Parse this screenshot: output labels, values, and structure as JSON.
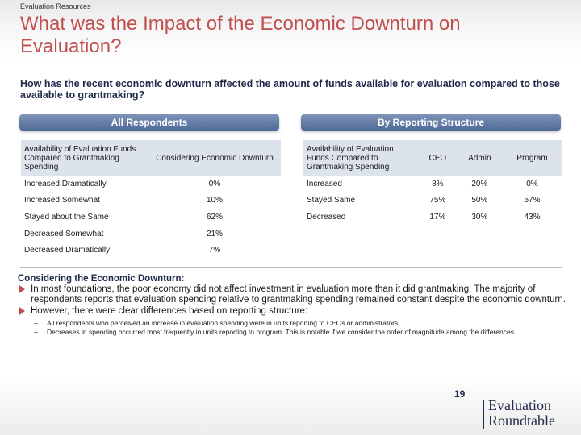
{
  "section_label": "Evaluation Resources",
  "title": "What was the Impact of the Economic Downturn on Evaluation?",
  "question": "How has the recent economic downturn affected the amount of funds available for evaluation compared to those available to grantmaking?",
  "all_respondents": {
    "label": "All Respondents",
    "columns": [
      "Availability of Evaluation Funds Compared to Grantmaking Spending",
      "Considering Economic Downturn"
    ],
    "rows": [
      [
        "Increased Dramatically",
        "0%"
      ],
      [
        "Increased Somewhat",
        "10%"
      ],
      [
        "Stayed about the Same",
        "62%"
      ],
      [
        "Decreased Somewhat",
        "21%"
      ],
      [
        "Decreased Dramatically",
        "7%"
      ]
    ]
  },
  "by_structure": {
    "label": "By Reporting Structure",
    "columns": [
      "Availability of Evaluation Funds Compared to Grantmaking Spending",
      "CEO",
      "Admin",
      "Program"
    ],
    "rows": [
      [
        "Increased",
        "8%",
        "20%",
        "0%"
      ],
      [
        "Stayed Same",
        "75%",
        "50%",
        "57%"
      ],
      [
        "Decreased",
        "17%",
        "30%",
        "43%"
      ]
    ]
  },
  "body": {
    "heading": "Considering the Economic Downturn:",
    "bullets": [
      "In most foundations, the poor economy did not affect investment in evaluation more than it did grantmaking. The majority of respondents reports that evaluation spending relative to grantmaking spending remained constant despite the economic downturn.",
      "However, there were clear differences based on reporting structure:"
    ],
    "sub_bullets": [
      "All respondents who perceived an increase in evaluation spending were in units reporting to CEOs or administrators.",
      "Decreases in spending occurred most frequently in units reporting to program. This is notable if we consider the order of magnitude among the differences."
    ]
  },
  "footer": {
    "page_number": "19",
    "logo_line1": "Evaluation",
    "logo_line2": "Roundtable"
  },
  "colors": {
    "title": "#c0504d",
    "navy": "#1f2a4a",
    "pill": "#5a73a0",
    "table_header": "#dde3ec"
  }
}
